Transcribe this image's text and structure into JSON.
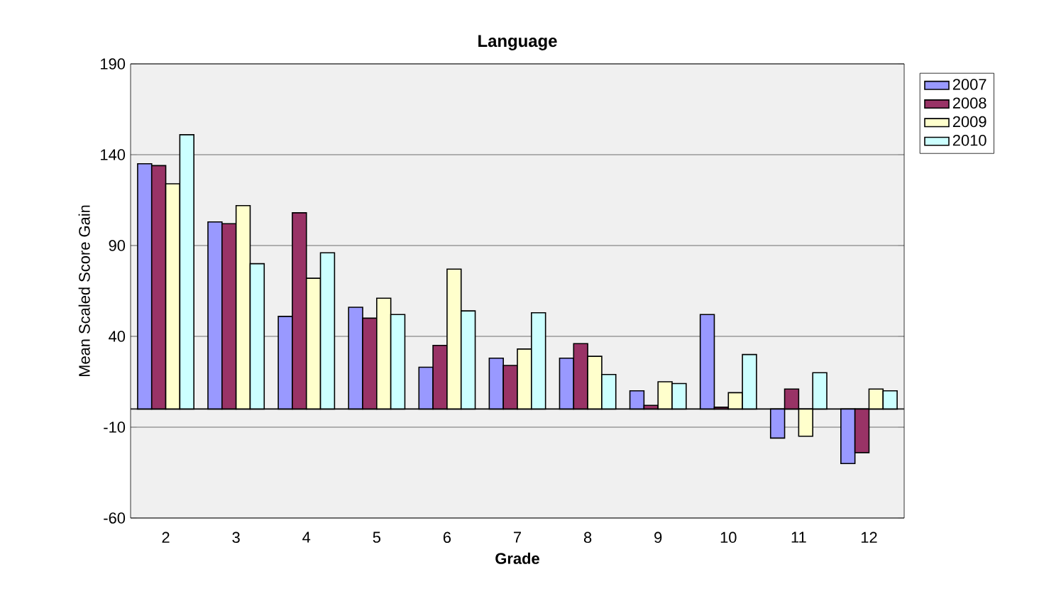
{
  "chart_data": {
    "type": "bar",
    "title": "Language",
    "xlabel": "Grade",
    "ylabel": "Mean Scaled Score Gain",
    "categories": [
      "2",
      "3",
      "4",
      "5",
      "6",
      "7",
      "8",
      "9",
      "10",
      "11",
      "12"
    ],
    "series": [
      {
        "name": "2007",
        "color": "#9999ff",
        "values": [
          135,
          103,
          51,
          56,
          23,
          28,
          28,
          10,
          52,
          -16,
          -30
        ]
      },
      {
        "name": "2008",
        "color": "#993366",
        "values": [
          134,
          102,
          108,
          50,
          35,
          24,
          36,
          2,
          1,
          11,
          -24
        ]
      },
      {
        "name": "2009",
        "color": "#ffffcc",
        "values": [
          124,
          112,
          72,
          61,
          77,
          33,
          29,
          15,
          9,
          -15,
          11
        ]
      },
      {
        "name": "2010",
        "color": "#ccffff",
        "values": [
          151,
          80,
          86,
          52,
          54,
          53,
          19,
          14,
          30,
          20,
          10
        ]
      }
    ],
    "ylim": [
      -60,
      190
    ],
    "yticks": [
      -60,
      -10,
      40,
      90,
      140,
      190
    ],
    "grid": "y",
    "legend": "right"
  }
}
